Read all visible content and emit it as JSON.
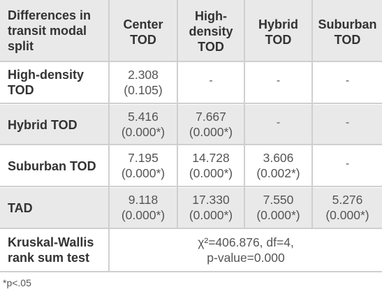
{
  "table": {
    "corner_header": [
      "Differences in",
      "transit modal",
      "split"
    ],
    "columns": [
      [
        "Center",
        "TOD"
      ],
      [
        "High-",
        "density",
        "TOD"
      ],
      [
        "Hybrid",
        "TOD"
      ],
      [
        "Suburban",
        "TOD"
      ]
    ],
    "rows": [
      {
        "label": [
          "High-density",
          "TOD"
        ],
        "cells": [
          [
            "2.308",
            "(0.105)"
          ],
          "-",
          "-",
          "-"
        ]
      },
      {
        "label": [
          "Hybrid TOD"
        ],
        "cells": [
          [
            "5.416",
            "(0.000*)"
          ],
          [
            "7.667",
            "(0.000*)"
          ],
          "-",
          "-"
        ]
      },
      {
        "label": [
          "Suburban TOD"
        ],
        "cells": [
          [
            "7.195",
            "(0.000*)"
          ],
          [
            "14.728",
            "(0.000*)"
          ],
          [
            "3.606",
            "(0.002*)"
          ],
          "-"
        ]
      },
      {
        "label": [
          "TAD"
        ],
        "cells": [
          [
            "9.118",
            "(0.000*)"
          ],
          [
            "17.330",
            "(0.000*)"
          ],
          [
            "7.550",
            "(0.000*)"
          ],
          [
            "5.276",
            "(0.000*)"
          ]
        ]
      }
    ],
    "test_row": {
      "label": [
        "Kruskal-Wallis",
        "rank sum test"
      ],
      "value": [
        "χ²=406.876, df=4,",
        "p-value=0.000"
      ]
    }
  },
  "footnote": "*p<.05"
}
